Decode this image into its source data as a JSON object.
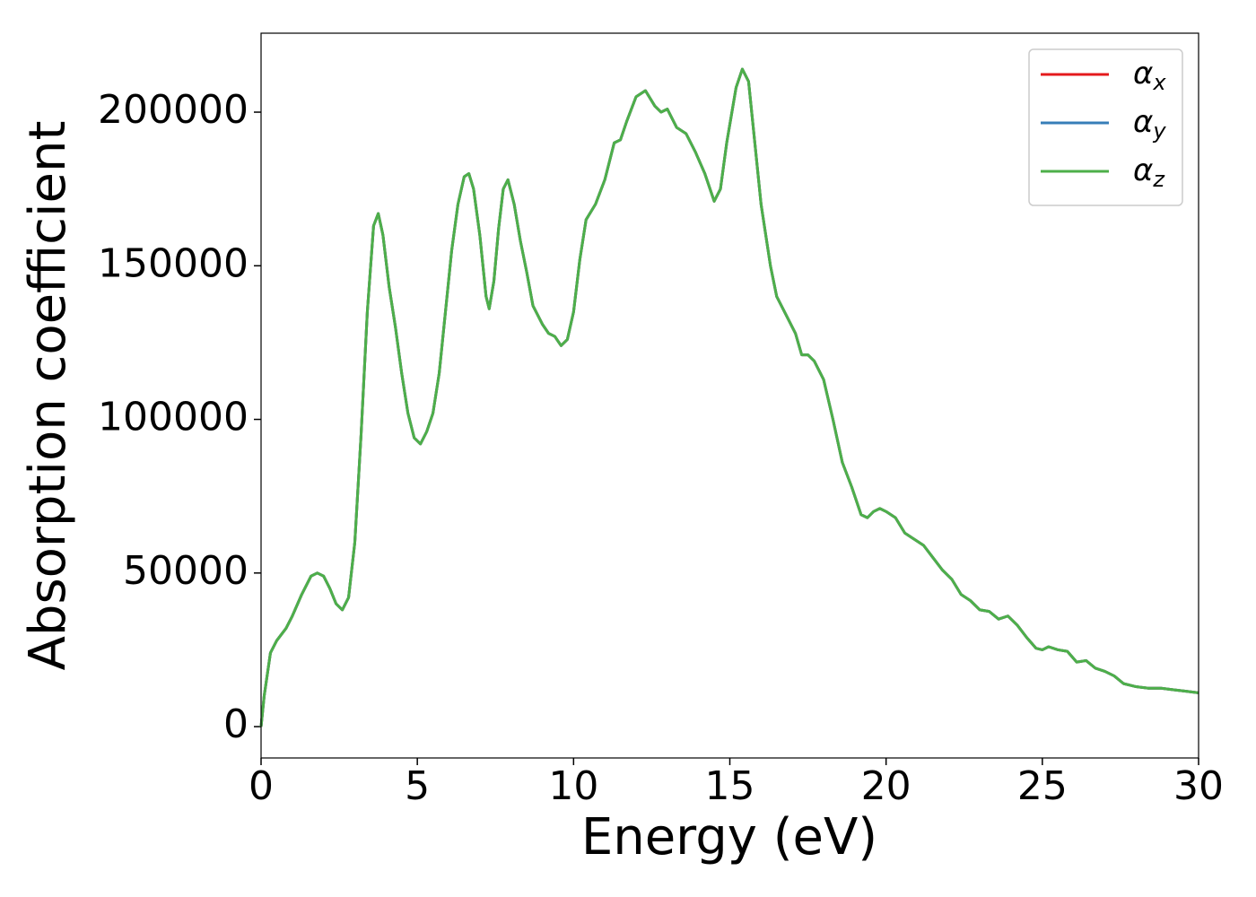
{
  "chart_data": {
    "type": "line",
    "xlabel": "Energy (eV)",
    "ylabel": "Absorption coefficient",
    "x": [
      0,
      0.1,
      0.3,
      0.5,
      0.8,
      1.0,
      1.3,
      1.6,
      1.8,
      2.0,
      2.2,
      2.4,
      2.6,
      2.8,
      3.0,
      3.2,
      3.4,
      3.6,
      3.75,
      3.9,
      4.1,
      4.3,
      4.5,
      4.7,
      4.9,
      5.1,
      5.3,
      5.5,
      5.7,
      5.9,
      6.1,
      6.3,
      6.5,
      6.65,
      6.8,
      7.0,
      7.2,
      7.3,
      7.45,
      7.6,
      7.75,
      7.9,
      8.1,
      8.3,
      8.5,
      8.7,
      9.0,
      9.2,
      9.4,
      9.6,
      9.8,
      10.0,
      10.2,
      10.4,
      10.7,
      11.0,
      11.3,
      11.5,
      11.7,
      12.0,
      12.3,
      12.6,
      12.8,
      13.0,
      13.3,
      13.6,
      13.9,
      14.2,
      14.5,
      14.7,
      14.9,
      15.2,
      15.4,
      15.6,
      15.8,
      16.0,
      16.3,
      16.5,
      16.8,
      17.1,
      17.3,
      17.5,
      17.7,
      18.0,
      18.3,
      18.6,
      18.9,
      19.2,
      19.4,
      19.6,
      19.8,
      20.0,
      20.3,
      20.6,
      20.9,
      21.2,
      21.5,
      21.8,
      22.1,
      22.4,
      22.7,
      23.0,
      23.3,
      23.6,
      23.9,
      24.2,
      24.5,
      24.8,
      25.0,
      25.2,
      25.5,
      25.8,
      26.1,
      26.4,
      26.7,
      27.0,
      27.3,
      27.6,
      28.0,
      28.4,
      28.8,
      29.2,
      29.6,
      30.0
    ],
    "series": [
      {
        "name": "αx",
        "color": "#e41a1c",
        "values": [
          0,
          10000,
          24000,
          28000,
          32000,
          36000,
          43000,
          49000,
          50000,
          49000,
          45000,
          40000,
          38000,
          42000,
          60000,
          95000,
          135000,
          163000,
          167000,
          160000,
          143000,
          130000,
          115000,
          102000,
          94000,
          92000,
          96000,
          102000,
          115000,
          135000,
          155000,
          170000,
          179000,
          180000,
          175000,
          160000,
          140000,
          136000,
          145000,
          162000,
          175000,
          178000,
          170000,
          158000,
          148000,
          137000,
          131000,
          128000,
          127000,
          124000,
          126000,
          135000,
          152000,
          165000,
          170000,
          178000,
          190000,
          191000,
          197000,
          205000,
          207000,
          202000,
          200000,
          201000,
          195000,
          193000,
          187000,
          180000,
          171000,
          175000,
          190000,
          208000,
          214000,
          210000,
          190000,
          170000,
          150000,
          140000,
          134000,
          128000,
          121000,
          121000,
          119000,
          113000,
          100000,
          86000,
          78000,
          69000,
          68000,
          70000,
          71000,
          70000,
          68000,
          63000,
          61000,
          59000,
          55000,
          51000,
          48000,
          43000,
          41000,
          38000,
          37500,
          35000,
          36000,
          33000,
          29000,
          25500,
          25000,
          26000,
          25000,
          24500,
          21000,
          21500,
          19000,
          18000,
          16500,
          14000,
          13000,
          12500,
          12500,
          12000,
          11500,
          11000
        ]
      },
      {
        "name": "αy",
        "color": "#377eb8",
        "values": [
          0,
          10000,
          24000,
          28000,
          32000,
          36000,
          43000,
          49000,
          50000,
          49000,
          45000,
          40000,
          38000,
          42000,
          60000,
          95000,
          135000,
          163000,
          167000,
          160000,
          143000,
          130000,
          115000,
          102000,
          94000,
          92000,
          96000,
          102000,
          115000,
          135000,
          155000,
          170000,
          179000,
          180000,
          175000,
          160000,
          140000,
          136000,
          145000,
          162000,
          175000,
          178000,
          170000,
          158000,
          148000,
          137000,
          131000,
          128000,
          127000,
          124000,
          126000,
          135000,
          152000,
          165000,
          170000,
          178000,
          190000,
          191000,
          197000,
          205000,
          207000,
          202000,
          200000,
          201000,
          195000,
          193000,
          187000,
          180000,
          171000,
          175000,
          190000,
          208000,
          214000,
          210000,
          190000,
          170000,
          150000,
          140000,
          134000,
          128000,
          121000,
          121000,
          119000,
          113000,
          100000,
          86000,
          78000,
          69000,
          68000,
          70000,
          71000,
          70000,
          68000,
          63000,
          61000,
          59000,
          55000,
          51000,
          48000,
          43000,
          41000,
          38000,
          37500,
          35000,
          36000,
          33000,
          29000,
          25500,
          25000,
          26000,
          25000,
          24500,
          21000,
          21500,
          19000,
          18000,
          16500,
          14000,
          13000,
          12500,
          12500,
          12000,
          11500,
          11000
        ]
      },
      {
        "name": "αz",
        "color": "#4daf4a",
        "values": [
          0,
          10000,
          24000,
          28000,
          32000,
          36000,
          43000,
          49000,
          50000,
          49000,
          45000,
          40000,
          38000,
          42000,
          60000,
          95000,
          135000,
          163000,
          167000,
          160000,
          143000,
          130000,
          115000,
          102000,
          94000,
          92000,
          96000,
          102000,
          115000,
          135000,
          155000,
          170000,
          179000,
          180000,
          175000,
          160000,
          140000,
          136000,
          145000,
          162000,
          175000,
          178000,
          170000,
          158000,
          148000,
          137000,
          131000,
          128000,
          127000,
          124000,
          126000,
          135000,
          152000,
          165000,
          170000,
          178000,
          190000,
          191000,
          197000,
          205000,
          207000,
          202000,
          200000,
          201000,
          195000,
          193000,
          187000,
          180000,
          171000,
          175000,
          190000,
          208000,
          214000,
          210000,
          190000,
          170000,
          150000,
          140000,
          134000,
          128000,
          121000,
          121000,
          119000,
          113000,
          100000,
          86000,
          78000,
          69000,
          68000,
          70000,
          71000,
          70000,
          68000,
          63000,
          61000,
          59000,
          55000,
          51000,
          48000,
          43000,
          41000,
          38000,
          37500,
          35000,
          36000,
          33000,
          29000,
          25500,
          25000,
          26000,
          25000,
          24500,
          21000,
          21500,
          19000,
          18000,
          16500,
          14000,
          13000,
          12500,
          12500,
          12000,
          11500,
          11000
        ]
      }
    ],
    "xlim": [
      0,
      30
    ],
    "xticks": [
      0,
      5,
      10,
      15,
      20,
      25,
      30
    ],
    "ylim": [
      -10200,
      225700
    ],
    "yticks": [
      0,
      50000,
      100000,
      150000,
      200000
    ],
    "grid": false,
    "legend": "upper right"
  }
}
